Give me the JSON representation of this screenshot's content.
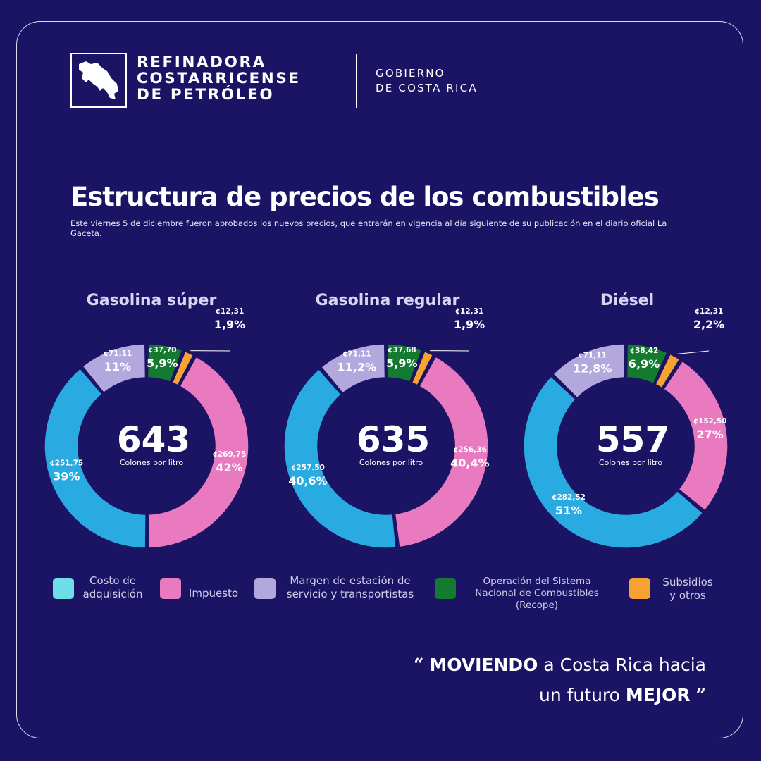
{
  "header": {
    "org_line1": "REFINADORA",
    "org_line2": "COSTARRICENSE",
    "org_line3": "DE PETRÓLEO",
    "gov_line1": "GOBIERNO",
    "gov_line2": "DE COSTA RICA",
    "logo_icon": "costa-rica-map-icon"
  },
  "title": "Estructura de precios de los combustibles",
  "subtitle": "Este viernes 5 de diciembre fueron aprobados los nuevos precios, que entrarán en vigencia al día siguiente de su publicación en el diario oficial La Gaceta.",
  "colors": {
    "costo": "#29abe2",
    "impuesto": "#e97ac0",
    "margen": "#b3a8dd",
    "recope": "#137a30",
    "subsidios": "#f7a334",
    "legend_costo": "#6ddfe8",
    "legend_impuesto": "#e97ac0",
    "legend_margen": "#b3a8dd",
    "legend_recope": "#137a30",
    "legend_subsidios": "#f7a334",
    "background": "#1b1464"
  },
  "chart_data": [
    {
      "type": "pie",
      "title": "Gasolina súper",
      "total": "643",
      "total_label": "Colones por litro",
      "slices": [
        {
          "key": "recope",
          "amount": 37.7,
          "amount_label": "¢37,70",
          "pct": 5.9,
          "pct_label": "5,9%"
        },
        {
          "key": "subsidios",
          "amount": 12.31,
          "amount_label": "¢12,31",
          "pct": 1.9,
          "pct_label": "1,9%"
        },
        {
          "key": "impuesto",
          "amount": 269.75,
          "amount_label": "¢269,75",
          "pct": 42,
          "pct_label": "42%"
        },
        {
          "key": "costo",
          "amount": 251.75,
          "amount_label": "¢251,75",
          "pct": 39,
          "pct_label": "39%"
        },
        {
          "key": "margen",
          "amount": 71.11,
          "amount_label": "¢71,11",
          "pct": 11,
          "pct_label": "11%"
        }
      ]
    },
    {
      "type": "pie",
      "title": "Gasolina regular",
      "total": "635",
      "total_label": "Colones por litro",
      "slices": [
        {
          "key": "recope",
          "amount": 37.68,
          "amount_label": "¢37,68",
          "pct": 5.9,
          "pct_label": "5,9%"
        },
        {
          "key": "subsidios",
          "amount": 12.31,
          "amount_label": "¢12,31",
          "pct": 1.9,
          "pct_label": "1,9%"
        },
        {
          "key": "impuesto",
          "amount": 256.36,
          "amount_label": "¢256,36",
          "pct": 40.4,
          "pct_label": "40,4%"
        },
        {
          "key": "costo",
          "amount": 257.5,
          "amount_label": "¢257.50",
          "pct": 40.6,
          "pct_label": "40,6%"
        },
        {
          "key": "margen",
          "amount": 71.11,
          "amount_label": "¢71,11",
          "pct": 11.2,
          "pct_label": "11,2%"
        }
      ]
    },
    {
      "type": "pie",
      "title": "Diésel",
      "total": "557",
      "total_label": "Colones por litro",
      "slices": [
        {
          "key": "recope",
          "amount": 38.42,
          "amount_label": "¢38,42",
          "pct": 6.9,
          "pct_label": "6,9%"
        },
        {
          "key": "subsidios",
          "amount": 12.31,
          "amount_label": "¢12,31",
          "pct": 2.2,
          "pct_label": "2,2%"
        },
        {
          "key": "impuesto",
          "amount": 152.5,
          "amount_label": "¢152,50",
          "pct": 27,
          "pct_label": "27%"
        },
        {
          "key": "costo",
          "amount": 282.52,
          "amount_label": "¢282,52",
          "pct": 51,
          "pct_label": "51%"
        },
        {
          "key": "margen",
          "amount": 71.11,
          "amount_label": "¢71,11",
          "pct": 12.8,
          "pct_label": "12,8%"
        }
      ]
    }
  ],
  "legend": {
    "costo": [
      "Costo de",
      "adquisición"
    ],
    "impuesto": [
      "Impuesto"
    ],
    "margen": [
      "Margen de estación de",
      "servicio y transportistas"
    ],
    "recope": [
      "Operación del Sistema",
      "Nacional de Combustibles",
      "(Recope)"
    ],
    "subsidios": [
      "Subsidios",
      "y otros"
    ]
  },
  "slogan": {
    "open_quote": "“",
    "bold1": "MOVIENDO",
    "text1": " a Costa Rica hacia",
    "text2": "un futuro ",
    "bold2": "MEJOR",
    "close_quote": "”"
  }
}
